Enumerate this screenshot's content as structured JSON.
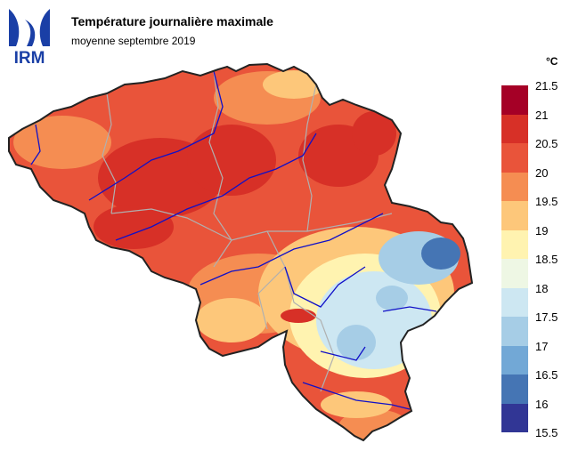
{
  "header": {
    "logo_text": "IRM",
    "title": "Température journalière maximale",
    "subtitle": "moyenne septembre 2019"
  },
  "legend": {
    "unit": "°C",
    "bins": [
      {
        "label": "21.5",
        "color": "#a50026"
      },
      {
        "label": "21",
        "color": "#d73027"
      },
      {
        "label": "20.5",
        "color": "#e9543a"
      },
      {
        "label": "20",
        "color": "#f58d52"
      },
      {
        "label": "19.5",
        "color": "#fdc77a"
      },
      {
        "label": "19",
        "color": "#fff3b0"
      },
      {
        "label": "18.5",
        "color": "#eef7e4"
      },
      {
        "label": "18",
        "color": "#cde7f2"
      },
      {
        "label": "17.5",
        "color": "#a6cde6"
      },
      {
        "label": "17",
        "color": "#72a8d6"
      },
      {
        "label": "16.5",
        "color": "#4575b4"
      },
      {
        "label": "16",
        "color": "#313695"
      },
      {
        "label": "15.5",
        "color": null
      }
    ]
  },
  "map": {
    "colors": {
      "warm_base": "#e9543a",
      "hot": "#d73027",
      "hottest": "#a50026",
      "mild": "#f58d52",
      "cool": "#fdc77a",
      "cooler": "#fff3b0",
      "cold": "#cde7f2",
      "colder": "#a6cde6",
      "coldest": "#4575b4",
      "rivers": "#1010c8",
      "provinces": "#b0b0b0",
      "border": "#222222"
    }
  }
}
